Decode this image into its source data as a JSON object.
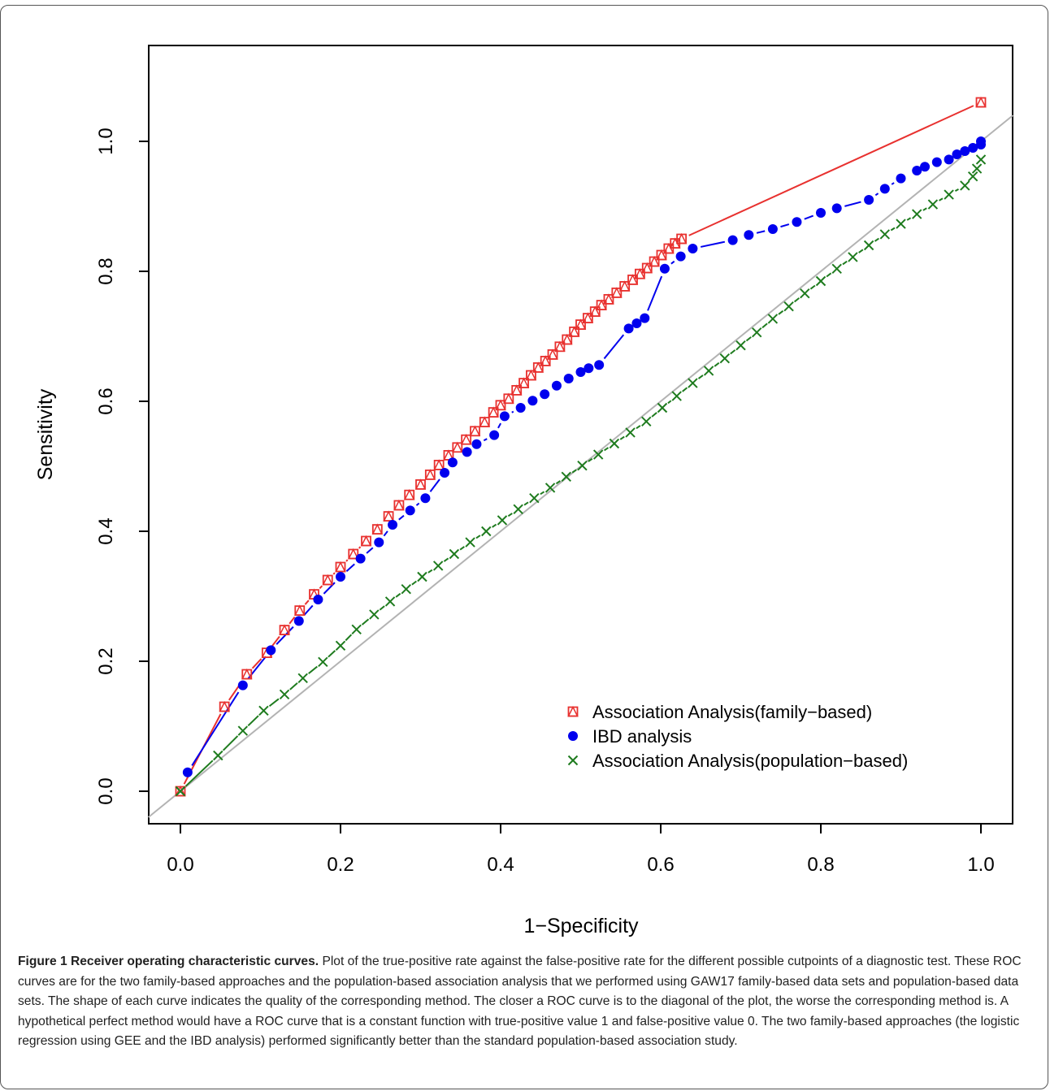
{
  "chart_data": {
    "type": "scatter",
    "title": "",
    "xlabel": "1−Specificity",
    "ylabel": "Sensitivity",
    "xlim": [
      -0.04,
      1.04
    ],
    "ylim": [
      -0.05,
      1.12
    ],
    "xticks": [
      "0.0",
      "0.2",
      "0.4",
      "0.6",
      "0.8",
      "1.0"
    ],
    "yticks": [
      "0.0",
      "0.2",
      "0.4",
      "0.6",
      "0.8",
      "1.0"
    ],
    "grid": false,
    "legend_position": "bottom-right",
    "reference_line": {
      "color": "#b3b3b3",
      "from": [
        0,
        0
      ],
      "to": [
        1,
        1
      ]
    },
    "series": [
      {
        "name": "Association Analysis(family−based)",
        "marker": "square-triangle",
        "color": "#e8312f",
        "line_color": "#e8312f",
        "points": [
          [
            0,
            0
          ],
          [
            0.055,
            0.13
          ],
          [
            0.083,
            0.18
          ],
          [
            0.108,
            0.213
          ],
          [
            0.13,
            0.248
          ],
          [
            0.149,
            0.278
          ],
          [
            0.167,
            0.303
          ],
          [
            0.184,
            0.325
          ],
          [
            0.2,
            0.345
          ],
          [
            0.216,
            0.365
          ],
          [
            0.232,
            0.385
          ],
          [
            0.246,
            0.403
          ],
          [
            0.26,
            0.423
          ],
          [
            0.273,
            0.44
          ],
          [
            0.286,
            0.456
          ],
          [
            0.3,
            0.472
          ],
          [
            0.312,
            0.487
          ],
          [
            0.323,
            0.502
          ],
          [
            0.335,
            0.517
          ],
          [
            0.346,
            0.529
          ],
          [
            0.357,
            0.541
          ],
          [
            0.368,
            0.554
          ],
          [
            0.38,
            0.568
          ],
          [
            0.391,
            0.583
          ],
          [
            0.4,
            0.594
          ],
          [
            0.41,
            0.604
          ],
          [
            0.42,
            0.617
          ],
          [
            0.429,
            0.628
          ],
          [
            0.438,
            0.64
          ],
          [
            0.447,
            0.652
          ],
          [
            0.456,
            0.662
          ],
          [
            0.465,
            0.672
          ],
          [
            0.474,
            0.684
          ],
          [
            0.483,
            0.695
          ],
          [
            0.492,
            0.707
          ],
          [
            0.5,
            0.718
          ],
          [
            0.509,
            0.728
          ],
          [
            0.518,
            0.738
          ],
          [
            0.526,
            0.748
          ],
          [
            0.535,
            0.757
          ],
          [
            0.545,
            0.767
          ],
          [
            0.555,
            0.777
          ],
          [
            0.565,
            0.787
          ],
          [
            0.574,
            0.796
          ],
          [
            0.583,
            0.805
          ],
          [
            0.592,
            0.815
          ],
          [
            0.601,
            0.825
          ],
          [
            0.61,
            0.835
          ],
          [
            0.618,
            0.843
          ],
          [
            0.626,
            0.85
          ],
          [
            1.0,
            1.06
          ]
        ]
      },
      {
        "name": "IBD analysis",
        "marker": "circle",
        "color": "#0000ee",
        "line_color": "#0000ee",
        "points": [
          [
            0.009,
            0.029
          ],
          [
            0.078,
            0.163
          ],
          [
            0.113,
            0.217
          ],
          [
            0.148,
            0.262
          ],
          [
            0.172,
            0.295
          ],
          [
            0.2,
            0.33
          ],
          [
            0.225,
            0.358
          ],
          [
            0.248,
            0.383
          ],
          [
            0.265,
            0.41
          ],
          [
            0.287,
            0.432
          ],
          [
            0.306,
            0.451
          ],
          [
            0.33,
            0.49
          ],
          [
            0.34,
            0.506
          ],
          [
            0.358,
            0.522
          ],
          [
            0.37,
            0.534
          ],
          [
            0.392,
            0.548
          ],
          [
            0.405,
            0.577
          ],
          [
            0.425,
            0.59
          ],
          [
            0.44,
            0.601
          ],
          [
            0.455,
            0.611
          ],
          [
            0.47,
            0.624
          ],
          [
            0.485,
            0.635
          ],
          [
            0.5,
            0.645
          ],
          [
            0.51,
            0.651
          ],
          [
            0.523,
            0.656
          ],
          [
            0.56,
            0.712
          ],
          [
            0.57,
            0.72
          ],
          [
            0.58,
            0.728
          ],
          [
            0.605,
            0.804
          ],
          [
            0.625,
            0.823
          ],
          [
            0.64,
            0.835
          ],
          [
            0.69,
            0.848
          ],
          [
            0.71,
            0.856
          ],
          [
            0.74,
            0.865
          ],
          [
            0.77,
            0.876
          ],
          [
            0.8,
            0.89
          ],
          [
            0.82,
            0.897
          ],
          [
            0.86,
            0.91
          ],
          [
            0.88,
            0.927
          ],
          [
            0.9,
            0.943
          ],
          [
            0.92,
            0.955
          ],
          [
            0.93,
            0.961
          ],
          [
            0.945,
            0.968
          ],
          [
            0.96,
            0.972
          ],
          [
            0.97,
            0.98
          ],
          [
            0.98,
            0.985
          ],
          [
            0.99,
            0.99
          ],
          [
            1.0,
            0.995
          ],
          [
            1.0,
            1.0
          ]
        ]
      },
      {
        "name": "Association Analysis(population−based)",
        "marker": "x",
        "color": "#1e7b1e",
        "line_color": "#1e7b1e",
        "points": [
          [
            0,
            0
          ],
          [
            0.047,
            0.055
          ],
          [
            0.078,
            0.093
          ],
          [
            0.104,
            0.124
          ],
          [
            0.13,
            0.149
          ],
          [
            0.153,
            0.174
          ],
          [
            0.178,
            0.199
          ],
          [
            0.2,
            0.224
          ],
          [
            0.22,
            0.249
          ],
          [
            0.242,
            0.272
          ],
          [
            0.262,
            0.292
          ],
          [
            0.282,
            0.311
          ],
          [
            0.302,
            0.33
          ],
          [
            0.322,
            0.347
          ],
          [
            0.342,
            0.365
          ],
          [
            0.362,
            0.383
          ],
          [
            0.382,
            0.4
          ],
          [
            0.402,
            0.417
          ],
          [
            0.422,
            0.434
          ],
          [
            0.442,
            0.451
          ],
          [
            0.462,
            0.467
          ],
          [
            0.482,
            0.484
          ],
          [
            0.502,
            0.501
          ],
          [
            0.522,
            0.518
          ],
          [
            0.542,
            0.535
          ],
          [
            0.562,
            0.552
          ],
          [
            0.582,
            0.569
          ],
          [
            0.602,
            0.59
          ],
          [
            0.62,
            0.608
          ],
          [
            0.64,
            0.628
          ],
          [
            0.66,
            0.647
          ],
          [
            0.68,
            0.666
          ],
          [
            0.7,
            0.686
          ],
          [
            0.72,
            0.706
          ],
          [
            0.74,
            0.727
          ],
          [
            0.76,
            0.746
          ],
          [
            0.78,
            0.766
          ],
          [
            0.8,
            0.785
          ],
          [
            0.82,
            0.804
          ],
          [
            0.84,
            0.822
          ],
          [
            0.86,
            0.84
          ],
          [
            0.88,
            0.857
          ],
          [
            0.9,
            0.873
          ],
          [
            0.92,
            0.888
          ],
          [
            0.94,
            0.903
          ],
          [
            0.96,
            0.918
          ],
          [
            0.98,
            0.932
          ],
          [
            0.99,
            0.946
          ],
          [
            0.995,
            0.958
          ],
          [
            1.0,
            0.972
          ]
        ]
      }
    ]
  },
  "caption": {
    "label": "Figure 1 Receiver operating characteristic curves.",
    "text": "Plot of the true-positive rate against the false-positive rate for the different possible cutpoints of a diagnostic test. These ROC curves are for the two family-based approaches and the population-based association analysis that we performed using GAW17 family-based data sets and population-based data sets. The shape of each curve indicates the quality of the corresponding method. The closer a ROC curve is to the diagonal of the plot, the worse the corresponding method is. A hypothetical perfect method would have a ROC curve that is a constant function with true-positive value 1 and false-positive value 0. The two family-based approaches (the logistic regression using GEE and the IBD analysis) performed significantly better than the standard population-based association study."
  }
}
